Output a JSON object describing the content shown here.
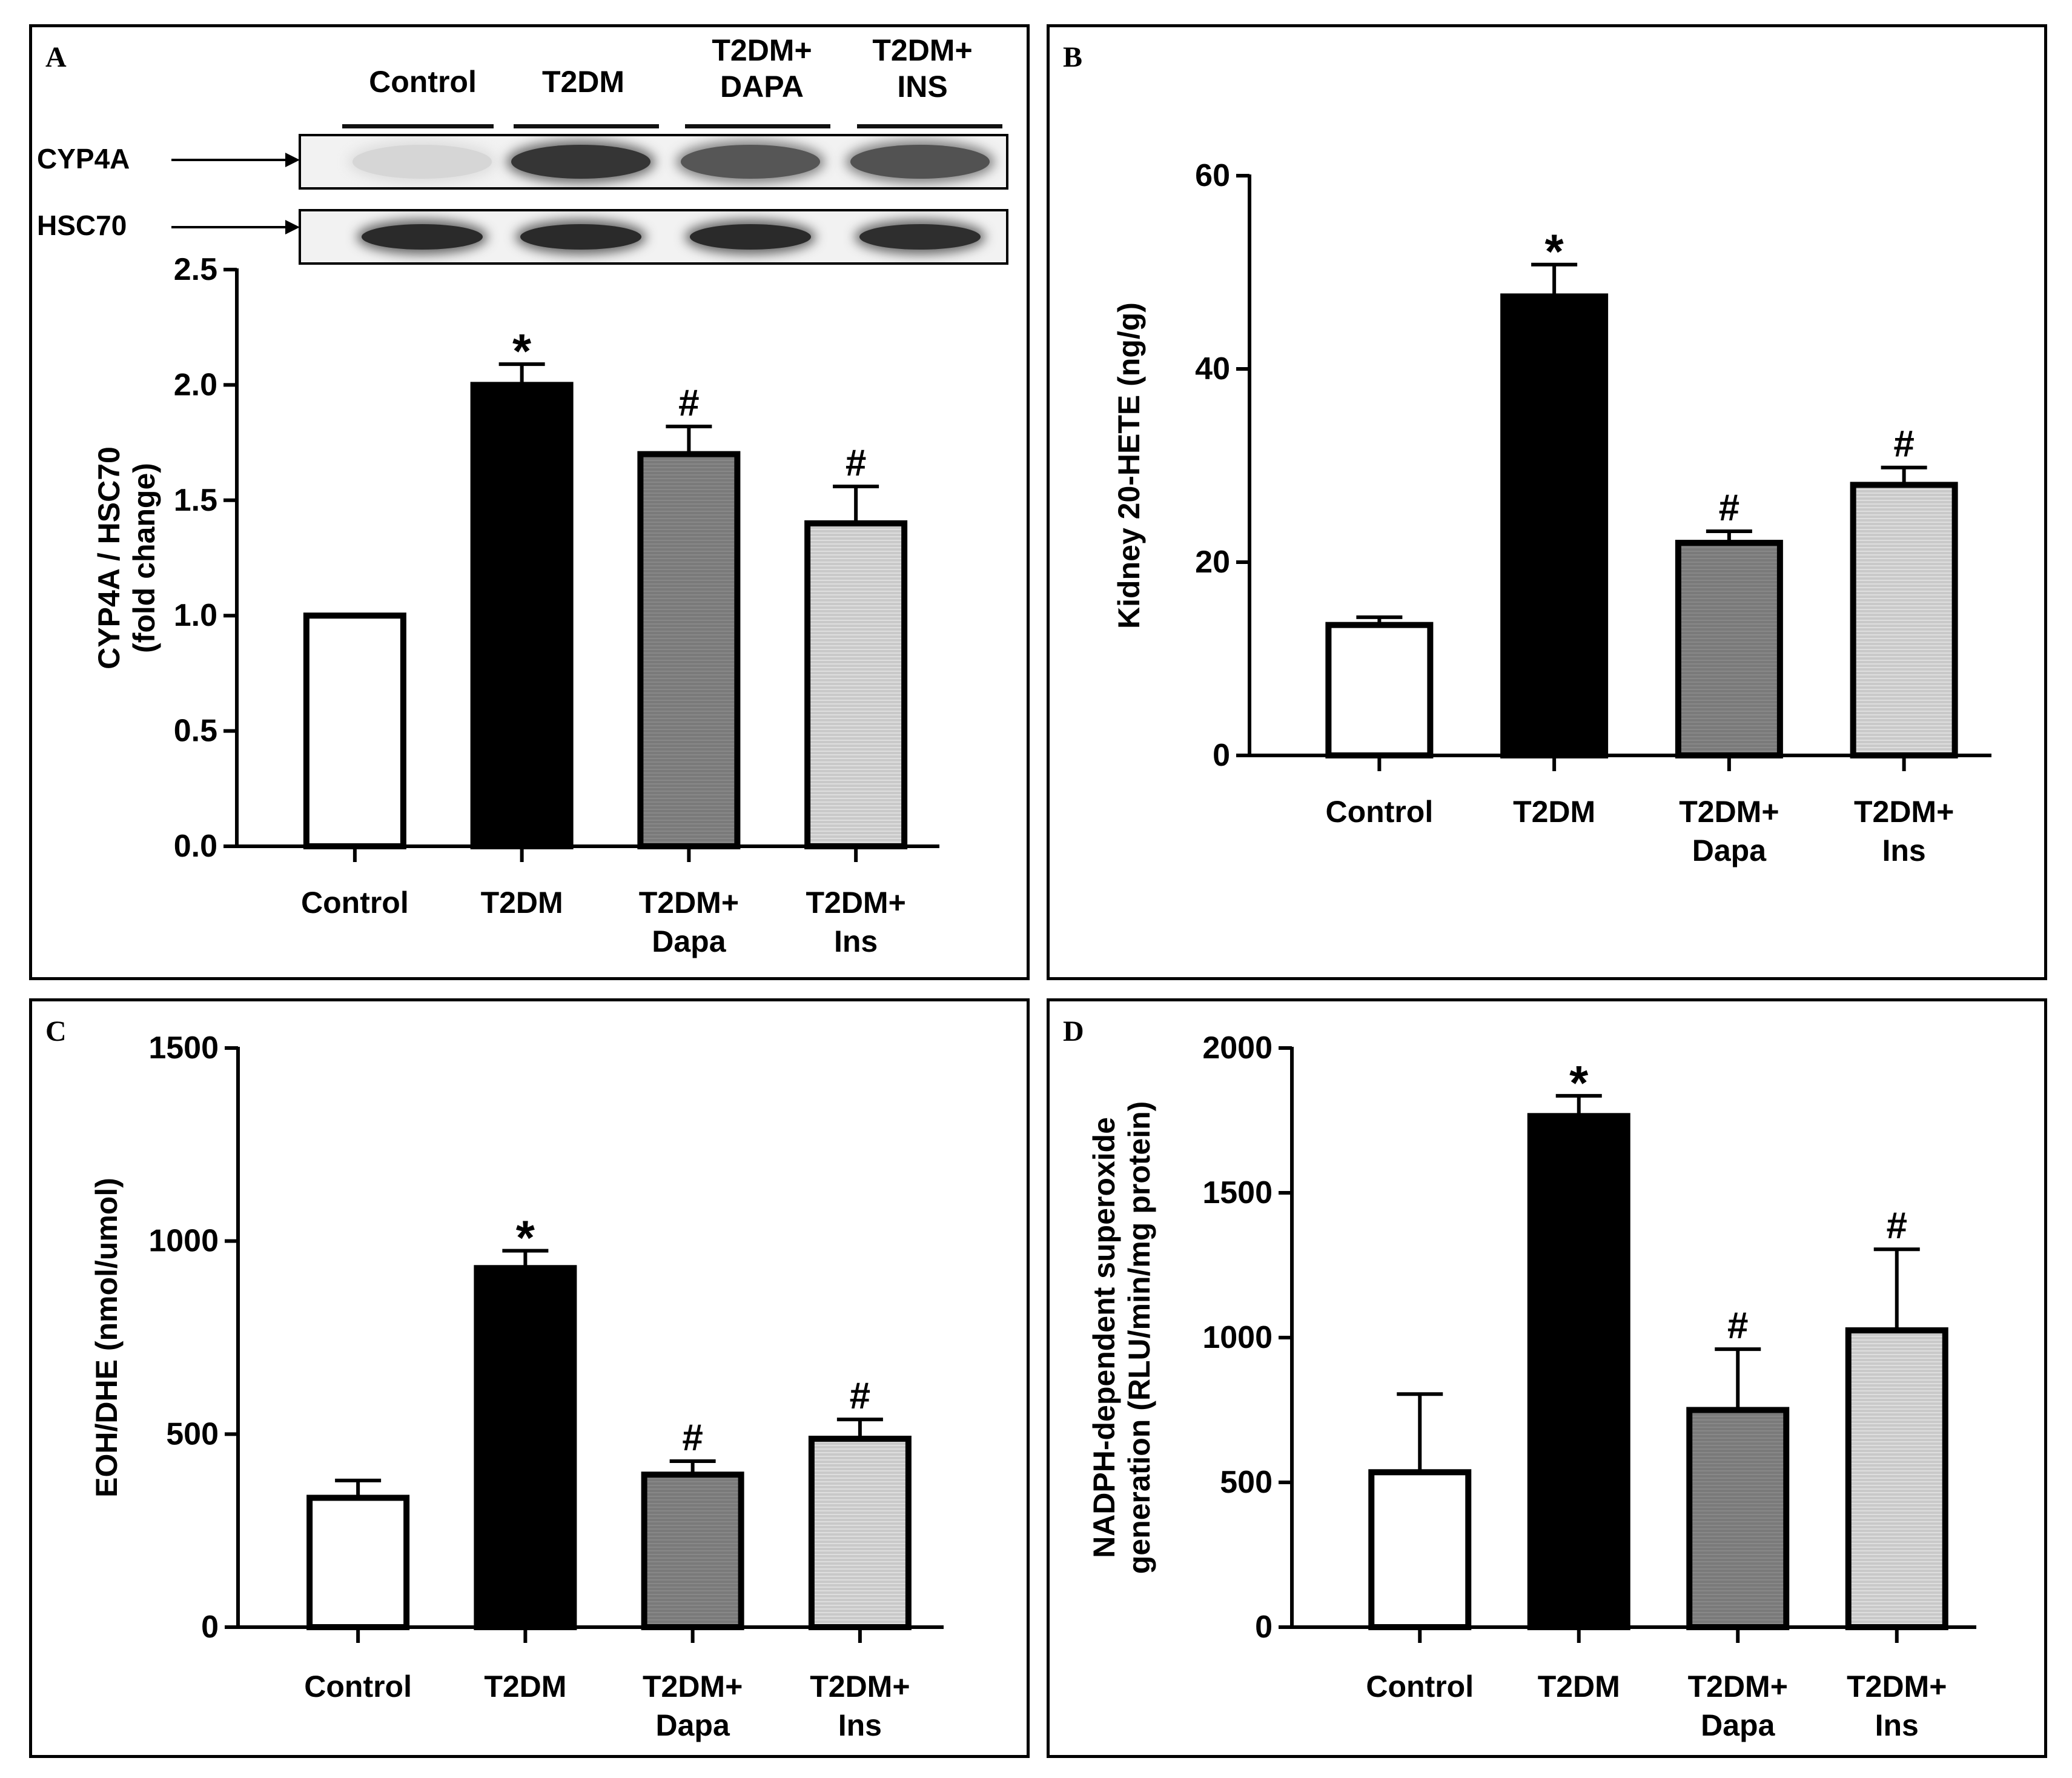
{
  "colors": {
    "control": "#ffffff",
    "t2dm": "#000000",
    "dapa": "#7a7a7a",
    "ins": "#c9c9c9",
    "axis": "#000000"
  },
  "panelA": {
    "letter": "A",
    "blot": {
      "headers": [
        "Control",
        "T2DM",
        "T2DM+\nDAPA",
        "T2DM+\nINS"
      ],
      "rows": [
        {
          "label": "CYP4A",
          "intensity": [
            0.12,
            0.85,
            0.7,
            0.72
          ]
        },
        {
          "label": "HSC70",
          "intensity": [
            0.9,
            0.9,
            0.9,
            0.88
          ]
        }
      ]
    }
  },
  "panelB": {
    "letter": "B"
  },
  "panelC": {
    "letter": "C"
  },
  "panelD": {
    "letter": "D"
  },
  "chart_data": [
    {
      "id": "A",
      "type": "bar",
      "categories": [
        "Control",
        "T2DM",
        "T2DM+\nDapa",
        "T2DM+\nIns"
      ],
      "values": [
        1.0,
        2.0,
        1.7,
        1.4
      ],
      "errors": [
        0,
        0.09,
        0.12,
        0.16
      ],
      "annotations": [
        "",
        "*",
        "#",
        "#"
      ],
      "ylabel": "CYP4A / HSC70\n(fold change)",
      "ylim": [
        0,
        2.5
      ],
      "yticks": [
        0.0,
        0.5,
        1.0,
        1.5,
        2.0,
        2.5
      ],
      "ytick_labels": [
        "0.0",
        "0.5",
        "1.0",
        "1.5",
        "2.0",
        "2.5"
      ]
    },
    {
      "id": "B",
      "type": "bar",
      "categories": [
        "Control",
        "T2DM",
        "T2DM+\nDapa",
        "T2DM+\nIns"
      ],
      "values": [
        13.5,
        47.5,
        22.0,
        28.0
      ],
      "errors": [
        0.8,
        3.3,
        1.2,
        1.8
      ],
      "annotations": [
        "",
        "*",
        "#",
        "#"
      ],
      "ylabel": "Kidney 20-HETE (ng/g)",
      "ylim": [
        0,
        60
      ],
      "yticks": [
        0,
        20,
        40,
        60
      ],
      "ytick_labels": [
        "0",
        "20",
        "40",
        "60"
      ]
    },
    {
      "id": "C",
      "type": "bar",
      "categories": [
        "Control",
        "T2DM",
        "T2DM+\nDapa",
        "T2DM+\nIns"
      ],
      "values": [
        335,
        930,
        395,
        488
      ],
      "errors": [
        45,
        45,
        35,
        50
      ],
      "annotations": [
        "",
        "*",
        "#",
        "#"
      ],
      "ylabel": "EOH/DHE (nmol/umol)",
      "ylim": [
        0,
        1500
      ],
      "yticks": [
        0,
        500,
        1000,
        1500
      ],
      "ytick_labels": [
        "0",
        "500",
        "1000",
        "1500"
      ]
    },
    {
      "id": "D",
      "type": "bar",
      "categories": [
        "Control",
        "T2DM",
        "T2DM+\nDapa",
        "T2DM+\nIns"
      ],
      "values": [
        535,
        1765,
        750,
        1025
      ],
      "errors": [
        270,
        70,
        210,
        280
      ],
      "annotations": [
        "",
        "*",
        "#",
        "#"
      ],
      "ylabel": "NADPH-dependent superoxide\ngeneration (RLU/min/mg protein)",
      "ylim": [
        0,
        2000
      ],
      "yticks": [
        0,
        500,
        1000,
        1500,
        2000
      ],
      "ytick_labels": [
        "0",
        "500",
        "1000",
        "1500",
        "2000"
      ]
    }
  ]
}
